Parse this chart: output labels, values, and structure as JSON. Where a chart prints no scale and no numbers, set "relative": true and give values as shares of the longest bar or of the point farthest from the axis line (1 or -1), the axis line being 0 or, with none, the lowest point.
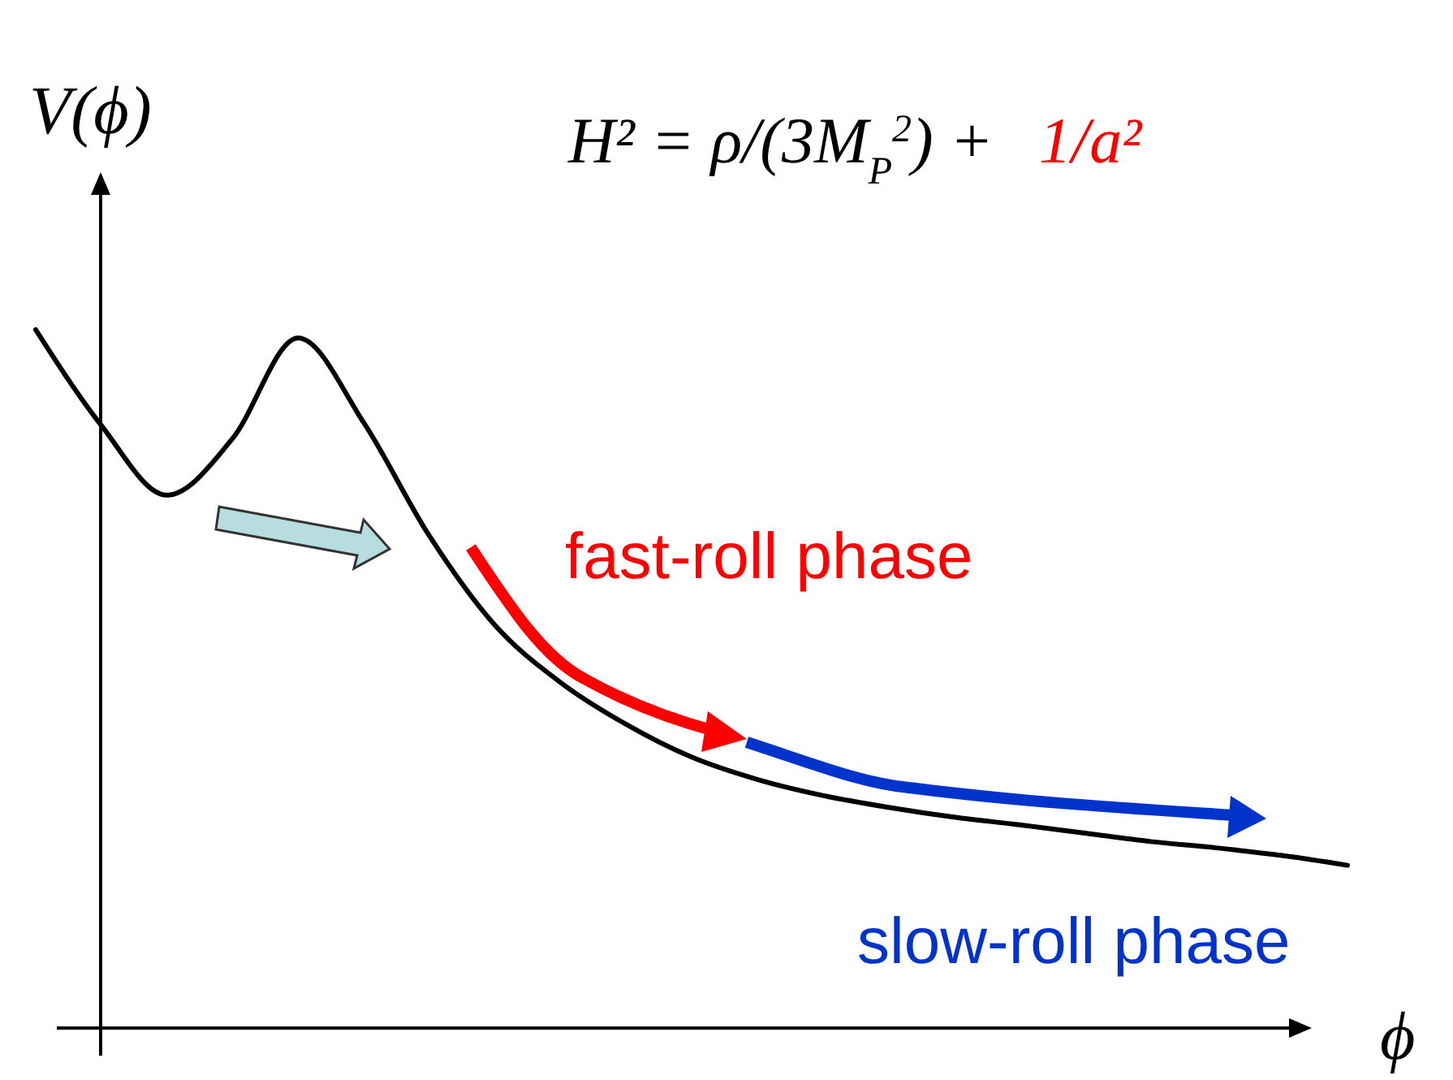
{
  "chart_data": {
    "type": "line",
    "relative": true,
    "xlabel": "ϕ",
    "ylabel": "V(ϕ)",
    "annotations": [
      "H² = ρ/(3M$_{P}$$^{2}$) +",
      "1/a²",
      "fast-roll phase",
      "slow-roll phase"
    ],
    "categories": [
      null,
      null,
      null,
      null,
      null,
      null,
      null,
      null,
      null,
      null,
      null,
      null,
      null,
      null,
      null,
      null,
      null,
      null,
      null,
      null,
      null
    ],
    "series": [
      {
        "color": "#000000",
        "values": [
          1.0,
          0.863,
          0.763,
          0.844,
          0.988,
          0.867,
          0.705,
          0.577,
          0.495,
          0.435,
          0.388,
          0.356,
          0.333,
          0.316,
          0.302,
          0.291,
          0.279,
          0.267,
          0.258,
          0.247,
          0.233
        ]
      }
    ]
  }
}
